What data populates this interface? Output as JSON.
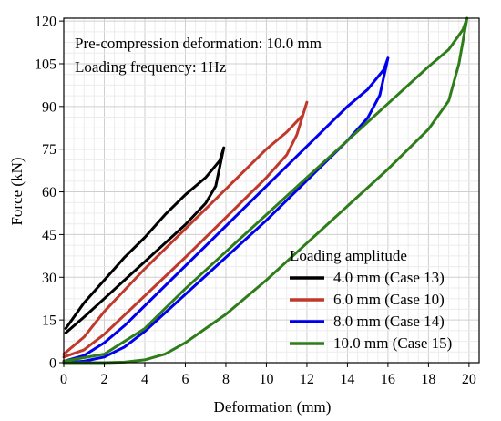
{
  "chart_data": {
    "type": "line",
    "xlabel": "Deformation (mm)",
    "ylabel": "Force (kN)",
    "xlim": [
      0,
      20.5
    ],
    "ylim": [
      0,
      121
    ],
    "xticks": [
      0,
      2,
      4,
      6,
      8,
      10,
      12,
      14,
      16,
      18,
      20
    ],
    "yticks": [
      0,
      15,
      30,
      45,
      60,
      75,
      90,
      105,
      120
    ],
    "grid": true,
    "annotations": [
      "Pre-compression deformation: 10.0 mm",
      "Loading frequency: 1Hz"
    ],
    "legend_title": "Loading amplitude",
    "legend_position": "bottom-right",
    "series": [
      {
        "name": "4.0 mm (Case 13)",
        "color": "#000000",
        "x": [
          0.1,
          1,
          2,
          3,
          4,
          5,
          6,
          7,
          7.5,
          7.9,
          7.7,
          7,
          6,
          5,
          4,
          3,
          2,
          1,
          0.1
        ],
        "y": [
          10.5,
          16,
          22.5,
          29,
          35.5,
          42,
          48.5,
          56,
          62,
          75.5,
          71,
          65,
          59,
          52,
          44,
          37,
          29,
          21,
          12
        ]
      },
      {
        "name": "6.0 mm (Case 10)",
        "color": "#c0392b",
        "x": [
          0,
          1,
          2,
          4,
          6,
          8,
          10,
          11,
          11.5,
          12,
          11.8,
          11,
          10,
          8,
          6,
          4,
          2,
          1,
          0
        ],
        "y": [
          2,
          4.5,
          10,
          23.5,
          37,
          51,
          65,
          73,
          80,
          91.5,
          87,
          81,
          75,
          61,
          47,
          33,
          18,
          9,
          3
        ]
      },
      {
        "name": "8.0 mm (Case 14)",
        "color": "#0000ee",
        "x": [
          0,
          1,
          2,
          3,
          4,
          6,
          8,
          10,
          12,
          14,
          15,
          15.6,
          16,
          15.8,
          15,
          14,
          12,
          10,
          8,
          6,
          4,
          3,
          2,
          1,
          0
        ],
        "y": [
          0,
          0.5,
          2,
          5.5,
          11,
          24,
          37,
          50,
          64,
          78,
          86,
          94,
          107,
          103,
          96,
          90,
          76,
          62,
          48,
          34,
          20,
          13,
          7,
          2.5,
          0.5
        ]
      },
      {
        "name": "10.0 mm (Case 15)",
        "color": "#2e7d1a",
        "x": [
          0,
          2,
          3,
          4,
          5,
          6,
          8,
          10,
          12,
          14,
          16,
          18,
          19,
          19.5,
          19.9,
          19.7,
          19,
          18,
          16,
          14,
          12,
          10,
          8,
          6,
          5,
          4,
          2,
          0
        ],
        "y": [
          0,
          0,
          0.2,
          1,
          3,
          7,
          17,
          29,
          42,
          55,
          68,
          82,
          92,
          105,
          121,
          117,
          110,
          104,
          91,
          78,
          65,
          52,
          39,
          26,
          19,
          12,
          3,
          0.5
        ]
      }
    ]
  }
}
